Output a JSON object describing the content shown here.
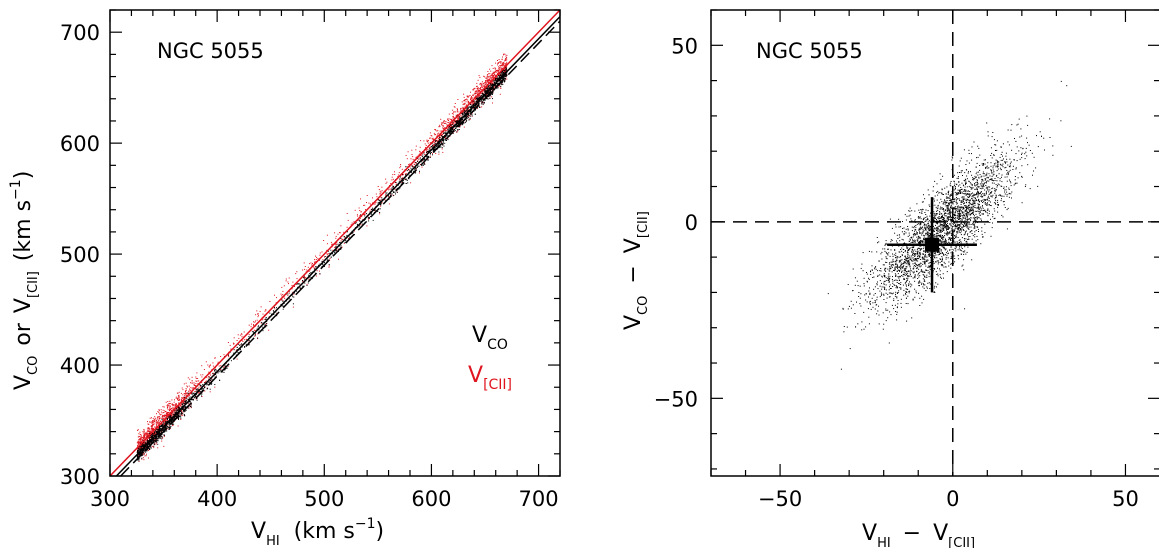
{
  "chart_data": [
    {
      "type": "scatter",
      "annotation": "NGC 5055",
      "xlabel": {
        "main": "V",
        "sub": "HI",
        "unit": "(km s",
        "sup": "−1",
        "close": ")"
      },
      "ylabel": {
        "v1": "V",
        "sub1": "CO",
        "or": "or",
        "v2": "V",
        "sub2": "[CII]",
        "unit": "(km s",
        "sup": "−1",
        "close": ")"
      },
      "xlim": [
        300,
        720
      ],
      "ylim": [
        300,
        720
      ],
      "xticks": [
        300,
        400,
        500,
        600,
        700
      ],
      "yticks": [
        300,
        400,
        500,
        600,
        700
      ],
      "x_tick_labels": [
        "300",
        "400",
        "500",
        "600",
        "700"
      ],
      "y_tick_labels": [
        "300",
        "400",
        "500",
        "600",
        "700"
      ],
      "legend": [
        {
          "main": "V",
          "sub": "CO",
          "color": "#000000"
        },
        {
          "main": "V",
          "sub": "[CII]",
          "color": "#e0141e"
        }
      ],
      "series": [
        {
          "name": "V_CO",
          "color": "#000000",
          "x_range": [
            325,
            670
          ],
          "relation": "y ≈ x − 6",
          "scatter_km_s": 5
        },
        {
          "name": "V_[CII]",
          "color": "#e0141e",
          "x_range": [
            325,
            670
          ],
          "relation": "y ≈ x",
          "scatter_km_s": 10
        }
      ],
      "lines": [
        {
          "description": "one-to-one",
          "color": "#e0141e",
          "style": "solid",
          "slope": 1,
          "intercept": 0
        },
        {
          "description": "fit",
          "color": "#000000",
          "style": "solid",
          "slope": 1,
          "intercept": -6
        },
        {
          "description": "fit offset",
          "color": "#000000",
          "style": "dashed",
          "slope": 1,
          "intercept": -10
        }
      ]
    },
    {
      "type": "scatter",
      "annotation": "NGC 5055",
      "xlabel": {
        "v1": "V",
        "sub1": "HI",
        "minus": "−",
        "v2": "V",
        "sub2": "[CII]"
      },
      "ylabel": {
        "v1": "V",
        "sub1": "CO",
        "minus": "−",
        "v2": "V",
        "sub2": "[CII]"
      },
      "xlim": [
        -70,
        60
      ],
      "ylim": [
        -72,
        60
      ],
      "xticks": [
        -50,
        0,
        50
      ],
      "yticks": [
        -50,
        0,
        50
      ],
      "x_tick_labels": [
        "−50",
        "0",
        "50"
      ],
      "y_tick_labels": [
        "−50",
        "0",
        "50"
      ],
      "reference_lines": {
        "x": 0,
        "y": 0,
        "style": "dashed"
      },
      "cloud": {
        "center": [
          -3,
          -2
        ],
        "extent_x": [
          -52,
          42
        ],
        "extent_y": [
          -53,
          43
        ],
        "trend": "positive correlation"
      },
      "mean_point": {
        "x": -6,
        "y": -6.5,
        "xerr": 13,
        "yerr": 13.5
      }
    }
  ]
}
